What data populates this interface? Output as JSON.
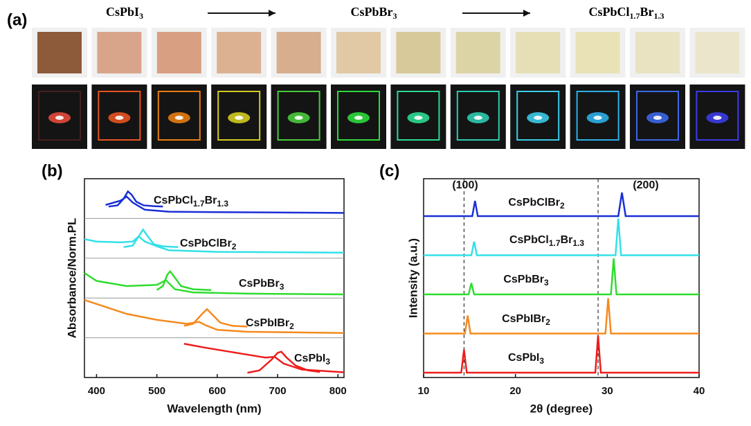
{
  "panel_labels": [
    "(a)",
    "(b)",
    "(c)"
  ],
  "photo_captions": [
    [
      "CsPbI",
      "3"
    ],
    [
      "CsPbBr",
      "3"
    ],
    [
      "CsPbCl",
      "1.7",
      "Br",
      "1.3"
    ]
  ],
  "chart_data": [
    {
      "type": "spectra",
      "x_label": "Wavelength (nm)",
      "y_label": "Absorbance/Norm.PL",
      "xlim": [
        380,
        810
      ],
      "xticks": [
        400,
        500,
        600,
        700,
        800
      ],
      "series": [
        {
          "name": [
            "CsPbCl",
            "1.7",
            "Br",
            "1.3"
          ],
          "color": "#1a2fd6",
          "absorption": {
            "x": [
              415,
              440,
              450,
              460,
              480,
              520,
              600,
              700,
              810
            ],
            "values": [
              0.34,
              0.45,
              0.55,
              0.4,
              0.22,
              0.17,
              0.16,
              0.15,
              0.14
            ]
          },
          "pl": {
            "x": [
              420,
              435,
              445,
              452,
              458,
              466,
              478,
              495,
              510
            ],
            "values": [
              0.3,
              0.33,
              0.5,
              0.68,
              0.6,
              0.42,
              0.33,
              0.31,
              0.3
            ]
          }
        },
        {
          "name": [
            "CsPbClBr",
            "2"
          ],
          "color": "#33e0e8",
          "absorption": {
            "x": [
              380,
              400,
              440,
              460,
              470,
              480,
              500,
              520,
              600,
              810
            ],
            "values": [
              0.48,
              0.42,
              0.4,
              0.42,
              0.55,
              0.42,
              0.3,
              0.2,
              0.16,
              0.14
            ]
          },
          "pl": {
            "x": [
              445,
              460,
              470,
              477,
              485,
              495,
              510,
              535
            ],
            "values": [
              0.28,
              0.32,
              0.55,
              0.72,
              0.55,
              0.35,
              0.3,
              0.28
            ]
          }
        },
        {
          "name": [
            "CsPbBr",
            "3"
          ],
          "color": "#2fdc2f",
          "absorption": {
            "x": [
              380,
              400,
              450,
              500,
              515,
              530,
              560,
              650,
              810
            ],
            "values": [
              0.63,
              0.43,
              0.3,
              0.33,
              0.45,
              0.22,
              0.14,
              0.11,
              0.09
            ]
          },
          "pl": {
            "x": [
              500,
              510,
              517,
              522,
              528,
              540,
              560,
              590
            ],
            "values": [
              0.2,
              0.3,
              0.58,
              0.67,
              0.55,
              0.3,
              0.22,
              0.2
            ]
          }
        },
        {
          "name": [
            "CsPbIBr",
            "2"
          ],
          "color": "#f58a1f",
          "absorption": {
            "x": [
              380,
              420,
              450,
              500,
              550,
              570,
              580,
              600,
              650,
              810
            ],
            "values": [
              0.95,
              0.75,
              0.6,
              0.45,
              0.35,
              0.4,
              0.32,
              0.2,
              0.15,
              0.12
            ]
          },
          "pl": {
            "x": [
              545,
              560,
              575,
              583,
              592,
              605,
              625,
              650
            ],
            "values": [
              0.3,
              0.35,
              0.6,
              0.72,
              0.58,
              0.38,
              0.3,
              0.28
            ]
          }
        },
        {
          "name": [
            "CsPbI",
            "3"
          ],
          "color": "#ee1c1c",
          "absorption": {
            "x": [
              545,
              580,
              620,
              660,
              680,
              695,
              710,
              740,
              810
            ],
            "values": [
              0.85,
              0.75,
              0.65,
              0.55,
              0.5,
              0.52,
              0.35,
              0.2,
              0.13
            ]
          },
          "pl": {
            "x": [
              650,
              670,
              690,
              700,
              706,
              715,
              730,
              750,
              770
            ],
            "values": [
              0.12,
              0.18,
              0.45,
              0.62,
              0.65,
              0.5,
              0.3,
              0.18,
              0.14
            ]
          }
        }
      ]
    },
    {
      "type": "xrd",
      "x_label": "2θ (degree)",
      "y_label": "Intensity (a.u.)",
      "xlim": [
        10,
        40
      ],
      "xticks": [
        10,
        20,
        30,
        40
      ],
      "reference_lines": [
        14.4,
        29.0
      ],
      "annotations": [
        "(100)",
        "(200)"
      ],
      "series": [
        {
          "name": [
            "CsPbClBr",
            "2"
          ],
          "color": "#1a2fd6",
          "x": [
            10,
            15.3,
            15.6,
            15.9,
            31.2,
            31.6,
            32.0,
            40
          ],
          "values": [
            0,
            0,
            0.39,
            0,
            0,
            0.6,
            0,
            0
          ]
        },
        {
          "name": [
            "CsPbCl",
            "1.7",
            "Br",
            "1.3"
          ],
          "color": "#33e0e8",
          "x": [
            10,
            15.2,
            15.5,
            15.8,
            30.9,
            31.2,
            31.5,
            40
          ],
          "values": [
            0,
            0,
            0.35,
            0,
            0,
            0.94,
            0,
            0
          ]
        },
        {
          "name": [
            "CsPbBr",
            "3"
          ],
          "color": "#2fdc2f",
          "x": [
            10,
            14.9,
            15.2,
            15.5,
            30.4,
            30.7,
            31.0,
            40
          ],
          "values": [
            0,
            0,
            0.29,
            0,
            0,
            0.92,
            0,
            0
          ]
        },
        {
          "name": [
            "CsPbIBr",
            "2"
          ],
          "color": "#f58a1f",
          "x": [
            10,
            14.5,
            14.8,
            15.1,
            29.8,
            30.1,
            30.4,
            40
          ],
          "values": [
            0,
            0,
            0.46,
            0,
            0,
            0.9,
            0,
            0
          ]
        },
        {
          "name": [
            "CsPbI",
            "3"
          ],
          "color": "#ee1c1c",
          "x": [
            10,
            14.1,
            14.4,
            14.7,
            28.7,
            29.0,
            29.3,
            40
          ],
          "values": [
            0,
            0,
            0.59,
            0,
            0,
            0.95,
            0,
            0
          ]
        }
      ]
    }
  ]
}
